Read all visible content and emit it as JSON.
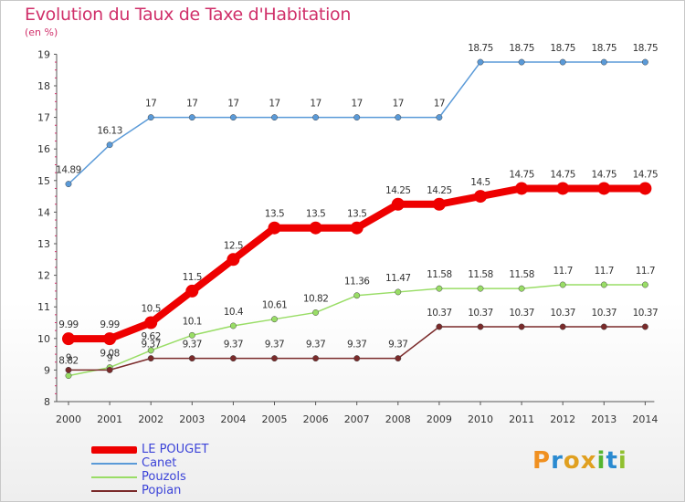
{
  "title": "Evolution du Taux de Taxe d'Habitation",
  "subtitle": "(en %)",
  "logo_text": "Proxiti",
  "chart_data": {
    "type": "line",
    "title": "Evolution du Taux de Taxe d'Habitation",
    "subtitle": "(en %)",
    "x": [
      "2000",
      "2001",
      "2002",
      "2003",
      "2004",
      "2005",
      "2006",
      "2007",
      "2008",
      "2009",
      "2010",
      "2011",
      "2012",
      "2013",
      "2014"
    ],
    "yticks": [
      "8",
      "9",
      "10",
      "11",
      "12",
      "13",
      "14",
      "15",
      "16",
      "17",
      "18",
      "19"
    ],
    "ylim": [
      8,
      19
    ],
    "grid": false,
    "legend_position": "bottom-left",
    "series": [
      {
        "name": "LE POUGET",
        "color": "#ee0000",
        "values": [
          9.99,
          9.99,
          10.5,
          11.5,
          12.5,
          13.5,
          13.5,
          13.5,
          14.25,
          14.25,
          14.5,
          14.75,
          14.75,
          14.75,
          14.75
        ],
        "labels": [
          "9.99",
          "9.99",
          "10.5",
          "11.5",
          "12.5",
          "13.5",
          "13.5",
          "13.5",
          "14.25",
          "14.25",
          "14.5",
          "14.75",
          "14.75",
          "14.75",
          "14.75"
        ]
      },
      {
        "name": "Canet",
        "color": "#5a9ad8",
        "values": [
          14.89,
          16.13,
          17,
          17,
          17,
          17,
          17,
          17,
          17,
          17,
          18.75,
          18.75,
          18.75,
          18.75,
          18.75
        ],
        "labels": [
          "14.89",
          "16.13",
          "17",
          "17",
          "17",
          "17",
          "17",
          "17",
          "17",
          "17",
          "18.75",
          "18.75",
          "18.75",
          "18.75",
          "18.75"
        ]
      },
      {
        "name": "Pouzols",
        "color": "#99dd66",
        "values": [
          8.82,
          9.08,
          9.62,
          10.1,
          10.4,
          10.61,
          10.82,
          11.36,
          11.47,
          11.58,
          11.58,
          11.58,
          11.7,
          11.7,
          11.7
        ],
        "labels": [
          "8.82",
          "9.08",
          "9.62",
          "10.1",
          "10.4",
          "10.61",
          "10.82",
          "11.36",
          "11.47",
          "11.58",
          "11.58",
          "11.58",
          "11.7",
          "11.7",
          "11.7"
        ]
      },
      {
        "name": "Popian",
        "color": "#7a2a2a",
        "values": [
          9,
          9,
          9.37,
          9.37,
          9.37,
          9.37,
          9.37,
          9.37,
          9.37,
          10.37,
          10.37,
          10.37,
          10.37,
          10.37,
          10.37
        ],
        "labels": [
          "9",
          "9",
          "9.37",
          "9.37",
          "9.37",
          "9.37",
          "9.37",
          "9.37",
          "9.37",
          "10.37",
          "10.37",
          "10.37",
          "10.37",
          "10.37",
          "10.37"
        ]
      }
    ]
  }
}
